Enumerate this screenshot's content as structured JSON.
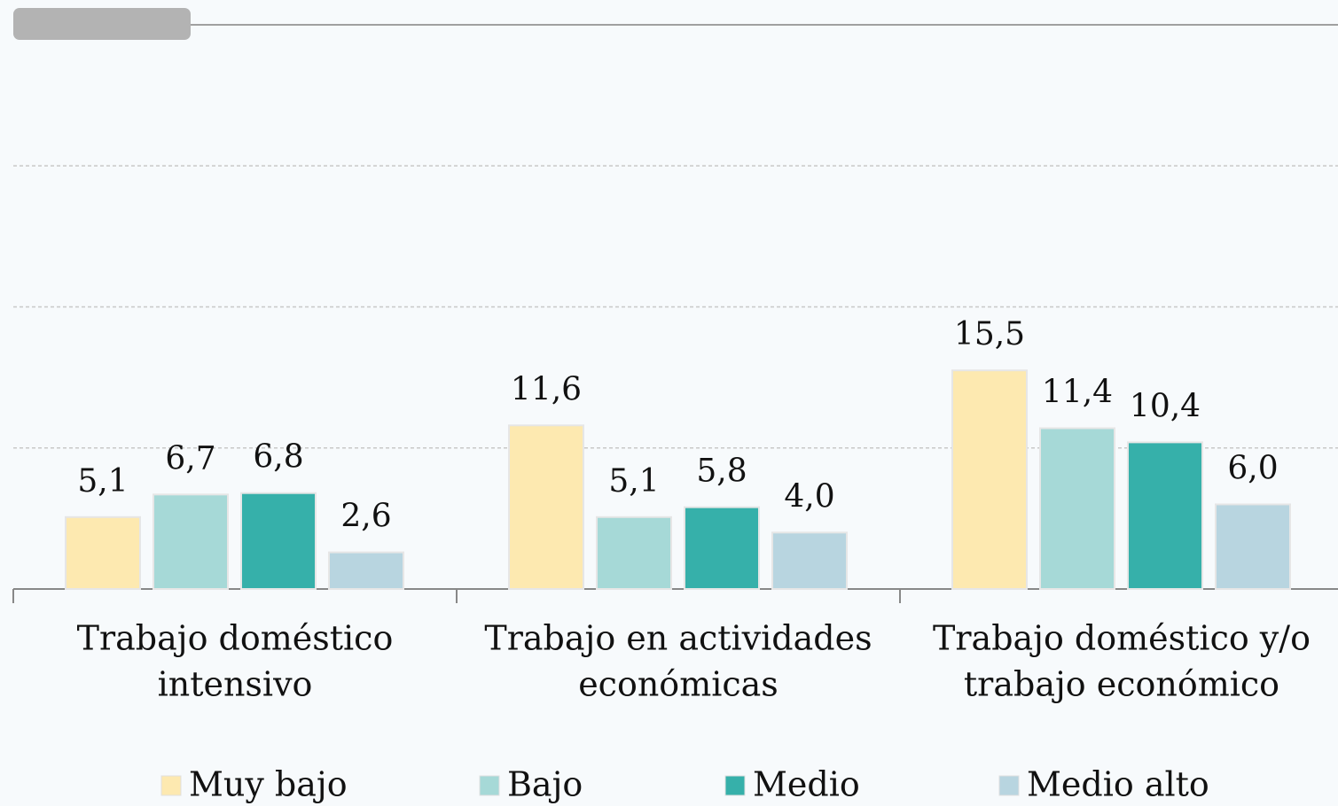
{
  "chart_data": {
    "type": "bar",
    "categories": [
      [
        "Trabajo doméstico",
        "intensivo"
      ],
      [
        "Trabajo en actividades",
        "económicas"
      ],
      [
        "Trabajo doméstico y/o",
        "trabajo económico"
      ]
    ],
    "series": [
      {
        "name": "Muy bajo",
        "color": "#fde9b0",
        "values": [
          5.1,
          11.6,
          15.5
        ],
        "value_labels": [
          "5,1",
          "11,6",
          "15,5"
        ]
      },
      {
        "name": "Bajo",
        "color": "#a6d9d7",
        "values": [
          6.7,
          5.1,
          11.4
        ],
        "value_labels": [
          "6,7",
          "5,1",
          "11,4"
        ]
      },
      {
        "name": "Medio",
        "color": "#36b0aa",
        "values": [
          6.8,
          5.8,
          10.4
        ],
        "value_labels": [
          "6,8",
          "5,8",
          "10,4"
        ]
      },
      {
        "name": "Medio alto",
        "color": "#b8d5e0",
        "values": [
          2.6,
          4.0,
          6.0
        ],
        "value_labels": [
          "2,6",
          "4,0",
          "6,0"
        ]
      }
    ],
    "ylim": [
      0,
      40
    ],
    "yticks": [
      0,
      10,
      20,
      30
    ],
    "grid": true
  }
}
